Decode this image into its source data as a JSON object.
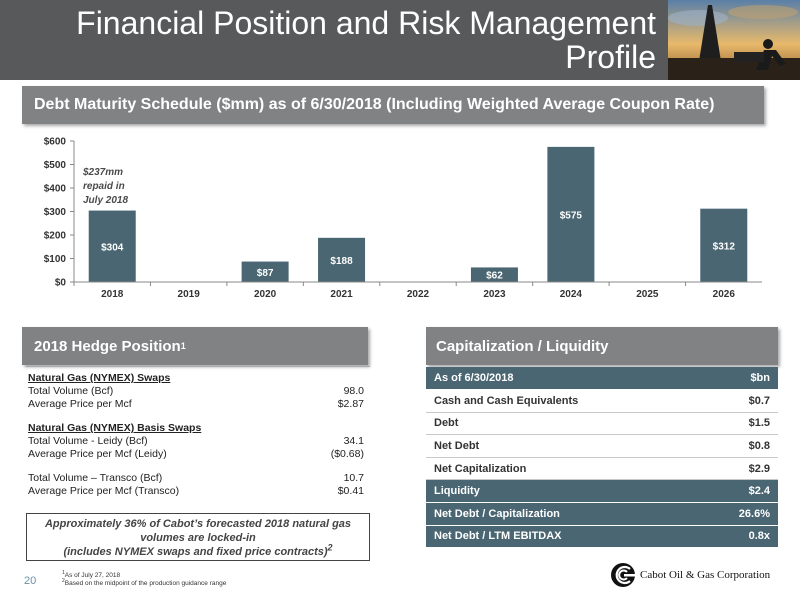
{
  "header": {
    "title_line1": "Financial Position and Risk Management",
    "title_line2": "Profile"
  },
  "debt_section": {
    "title": "Debt Maturity Schedule ($mm) as of 6/30/2018 (Including Weighted Average Coupon Rate)",
    "annotation": [
      "$237mm",
      "repaid in",
      "July 2018"
    ]
  },
  "chart_data": {
    "type": "bar",
    "categories": [
      "2018",
      "2019",
      "2020",
      "2021",
      "2022",
      "2023",
      "2024",
      "2025",
      "2026"
    ],
    "values": [
      304,
      0,
      87,
      188,
      0,
      62,
      575,
      0,
      312
    ],
    "data_labels": [
      "$304",
      "",
      "$87",
      "$188",
      "",
      "$62",
      "$575",
      "",
      "$312"
    ],
    "y_ticks": [
      "$0",
      "$100",
      "$200",
      "$300",
      "$400",
      "$500",
      "$600"
    ],
    "ylim": [
      0,
      600
    ],
    "title": "",
    "xlabel": "",
    "ylabel": "",
    "bar_color": "#4a6672",
    "grid": false
  },
  "hedge": {
    "title": "2018 Hedge Position",
    "title_sup": "1",
    "swaps_title": "Natural Gas (NYMEX) Swaps",
    "swaps_rows": [
      {
        "label": "Total Volume (Bcf)",
        "value": "98.0"
      },
      {
        "label": "Average Price per Mcf",
        "value": "$2.87"
      }
    ],
    "basis_title": "Natural Gas (NYMEX) Basis Swaps",
    "basis_rows": [
      {
        "label": "Total Volume - Leidy (Bcf)",
        "value": "34.1"
      },
      {
        "label": "Average Price per Mcf (Leidy)",
        "value": "($0.68)"
      }
    ],
    "transco_rows": [
      {
        "label": "Total Volume – Transco (Bcf)",
        "value": "10.7"
      },
      {
        "label": "Average Price per Mcf (Transco)",
        "value": "$0.41"
      }
    ],
    "note_line1": "Approximately 36% of Cabot’s forecasted 2018 natural gas",
    "note_line2": "volumes are locked-in",
    "note_line3": "(includes NYMEX swaps and fixed price contracts)",
    "note_sup": "2"
  },
  "capitalization": {
    "title": "Capitalization / Liquidity",
    "rows": [
      {
        "label": "As of 6/30/2018",
        "value": "$bn",
        "style": "dark"
      },
      {
        "label": "Cash and Cash Equivalents",
        "value": "$0.7",
        "style": "light"
      },
      {
        "label": "Debt",
        "value": "$1.5",
        "style": "light"
      },
      {
        "label": "Net Debt",
        "value": "$0.8",
        "style": "light"
      },
      {
        "label": "Net Capitalization",
        "value": "$2.9",
        "style": "light"
      },
      {
        "label": "Liquidity",
        "value": "$2.4",
        "style": "dark"
      },
      {
        "label": "Net Debt / Capitalization",
        "value": "26.6%",
        "style": "dark"
      },
      {
        "label": "Net Debt / LTM EBITDAX",
        "value": "0.8x",
        "style": "dark"
      }
    ]
  },
  "footer": {
    "page_number": "20",
    "footnote1_sup": "1",
    "footnote1": "As of July 27, 2018",
    "footnote2_sup": "2",
    "footnote2": "Based on the midpoint of the production guidance range",
    "company": "Cabot Oil & Gas Corporation"
  },
  "colors": {
    "header_bg": "#58595b",
    "banner_bg": "#808284",
    "bar": "#4a6672",
    "table_dark": "#4a6672"
  }
}
